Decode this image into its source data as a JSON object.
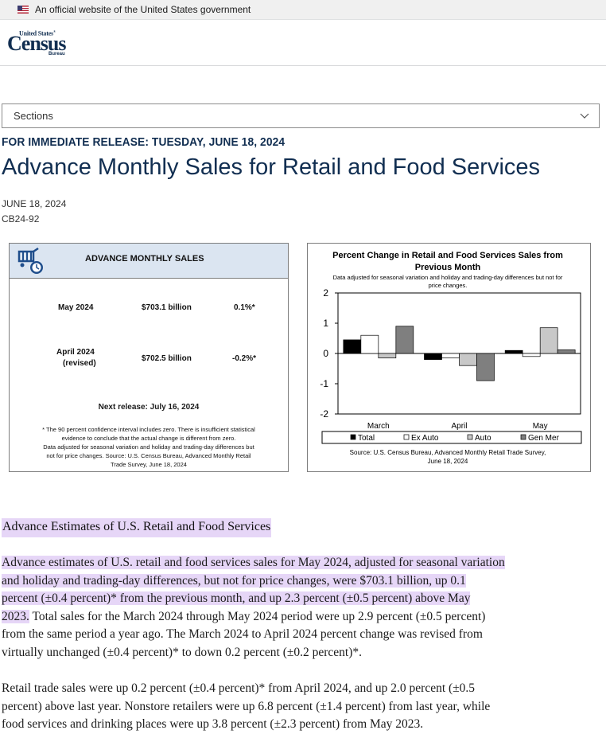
{
  "banner": {
    "text": "An official website of the United States government"
  },
  "logo": {
    "top": "United States",
    "reg": "®",
    "main": "Census",
    "bottom": "Bureau"
  },
  "sections": {
    "label": "Sections"
  },
  "release": "FOR IMMEDIATE RELEASE: TUESDAY, JUNE 18, 2024",
  "title": "Advance Monthly Sales for Retail and Food Services",
  "date": "JUNE 18, 2024",
  "release_no": "CB24-92",
  "sales_box": {
    "title": "ADVANCE MONTHLY SALES",
    "rows": [
      {
        "period": "May 2024",
        "period2": "",
        "amount": "$703.1 billion",
        "change": "0.1%*"
      },
      {
        "period": "April 2024",
        "period2": "(revised)",
        "amount": "$702.5 billion",
        "change": "-0.2%*"
      }
    ],
    "next_release": "Next release: July 16, 2024",
    "note": [
      "* The 90 percent confidence interval includes zero. There is insufficient statistical",
      "evidence to conclude that the actual change is different from zero.",
      "Data adjusted for seasonal variation and holiday and trading-day differences but",
      "not for price changes. Source: U.S. Census Bureau, Advanced Monthly Retail",
      "Trade Survey, June 18, 2024"
    ]
  },
  "chart_data": {
    "type": "bar",
    "title_lines": [
      "Percent Change in Retail and Food Services Sales from",
      "Previous Month"
    ],
    "subtitle_lines": [
      "Data adjusted for seasonal variation and holiday and trading-day differences but not for",
      "price changes."
    ],
    "categories": [
      "March",
      "April",
      "May"
    ],
    "ylim": [
      -2,
      2
    ],
    "yticks": [
      "2",
      "1",
      "0",
      "-1",
      "-2"
    ],
    "ytick_values": [
      2,
      1,
      0,
      -1,
      -2
    ],
    "series": [
      {
        "name": "Total",
        "values": [
          0.45,
          -0.2,
          0.1
        ],
        "color": "#000000"
      },
      {
        "name": "Ex Auto",
        "values": [
          0.6,
          -0.15,
          -0.1
        ],
        "color": "#ffffff"
      },
      {
        "name": "Auto",
        "values": [
          -0.15,
          -0.4,
          0.85
        ],
        "color": "#c8c8c8"
      },
      {
        "name": "Gen Mer",
        "values": [
          0.9,
          -0.9,
          0.12
        ],
        "color": "#7f7f7f"
      }
    ],
    "legend_position": "bottom",
    "source_lines": [
      "Source: U.S. Census Bureau, Advanced Monthly Retail Trade Survey,",
      "June 18, 2024"
    ]
  },
  "section_heading": "Advance Estimates of U.S. Retail and Food Services",
  "para1_highlight": [
    "Advance estimates of U.S. retail and food services sales for May 2024, adjusted for seasonal variation",
    "and holiday and trading-day differences, but not for price changes, were $703.1 billion, up 0.1",
    "percent (±0.4 percent)* from the previous month, and up 2.3 percent (±0.5 percent) above May",
    "2023."
  ],
  "para1_rest": [
    " Total sales for the March 2024 through May 2024 period were up 2.9 percent (±0.5 percent)",
    "from the same period a year ago. The March 2024 to April 2024 percent change was revised from",
    "virtually unchanged (±0.4 percent)* to down 0.2 percent (±0.2 percent)*."
  ],
  "para2": [
    "Retail trade sales were up 0.2 percent (±0.4 percent)* from April 2024, and up 2.0 percent (±0.5",
    "percent) above last year. Nonstore retailers were up 6.8 percent (±1.4 percent) from last year, while",
    "food services and drinking places were up 3.8 percent (±2.3 percent) from May 2023."
  ]
}
